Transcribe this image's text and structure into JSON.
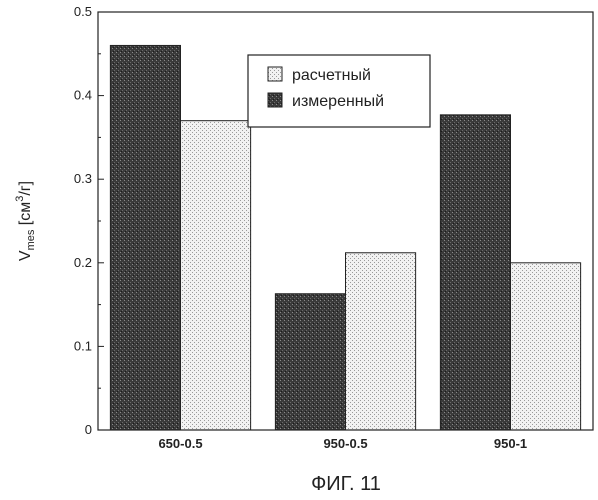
{
  "chart_data": {
    "type": "bar",
    "categories": [
      "650-0.5",
      "950-0.5",
      "950-1"
    ],
    "series": [
      {
        "name": "измеренный",
        "values": [
          0.46,
          0.163,
          0.377
        ],
        "color": "#3a3a3a",
        "pattern": "dense-dark"
      },
      {
        "name": "расчетный",
        "values": [
          0.37,
          0.212,
          0.2
        ],
        "color": "#e4e4e4",
        "pattern": "light-dotted"
      }
    ],
    "ylabel": {
      "main": "V",
      "sub": "mes",
      "unit_open": " [см",
      "unit_sup": "3",
      "unit_close": "/г]"
    },
    "ylim": [
      0,
      0.5
    ],
    "yticks": [
      "0",
      "0.1",
      "0.2",
      "0.3",
      "0.4",
      "0.5"
    ],
    "legend": {
      "position": "top-right",
      "entries": [
        "расчетный",
        "измеренный"
      ]
    },
    "grid": false
  },
  "caption": "ФИГ. 11"
}
